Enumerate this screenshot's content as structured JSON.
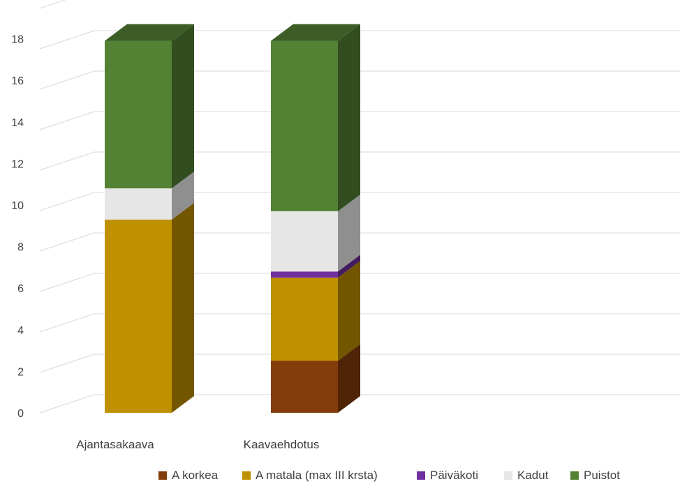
{
  "chart_data": {
    "type": "bar",
    "stacked": true,
    "three_d": true,
    "categories": [
      "Ajantasakaava",
      "Kaavaehdotus"
    ],
    "series": [
      {
        "name": "A korkea",
        "values": [
          0,
          2.5
        ],
        "color": "#843C0C"
      },
      {
        "name": "A matala (max III krsta)",
        "values": [
          9.3,
          4.0
        ],
        "color": "#BF9000"
      },
      {
        "name": "Päiväkoti",
        "values": [
          0,
          0.3
        ],
        "color": "#7030A0"
      },
      {
        "name": "Kadut",
        "values": [
          1.5,
          2.9
        ],
        "color": "#E7E6E6"
      },
      {
        "name": "Puistot",
        "values": [
          7.1,
          8.2
        ],
        "color": "#548235"
      }
    ],
    "y_ticks": [
      "0",
      "2",
      "4",
      "6",
      "8",
      "10",
      "12",
      "14",
      "16",
      "18"
    ],
    "ylim": [
      0,
      20
    ],
    "grid": true,
    "legend_position": "bottom"
  }
}
